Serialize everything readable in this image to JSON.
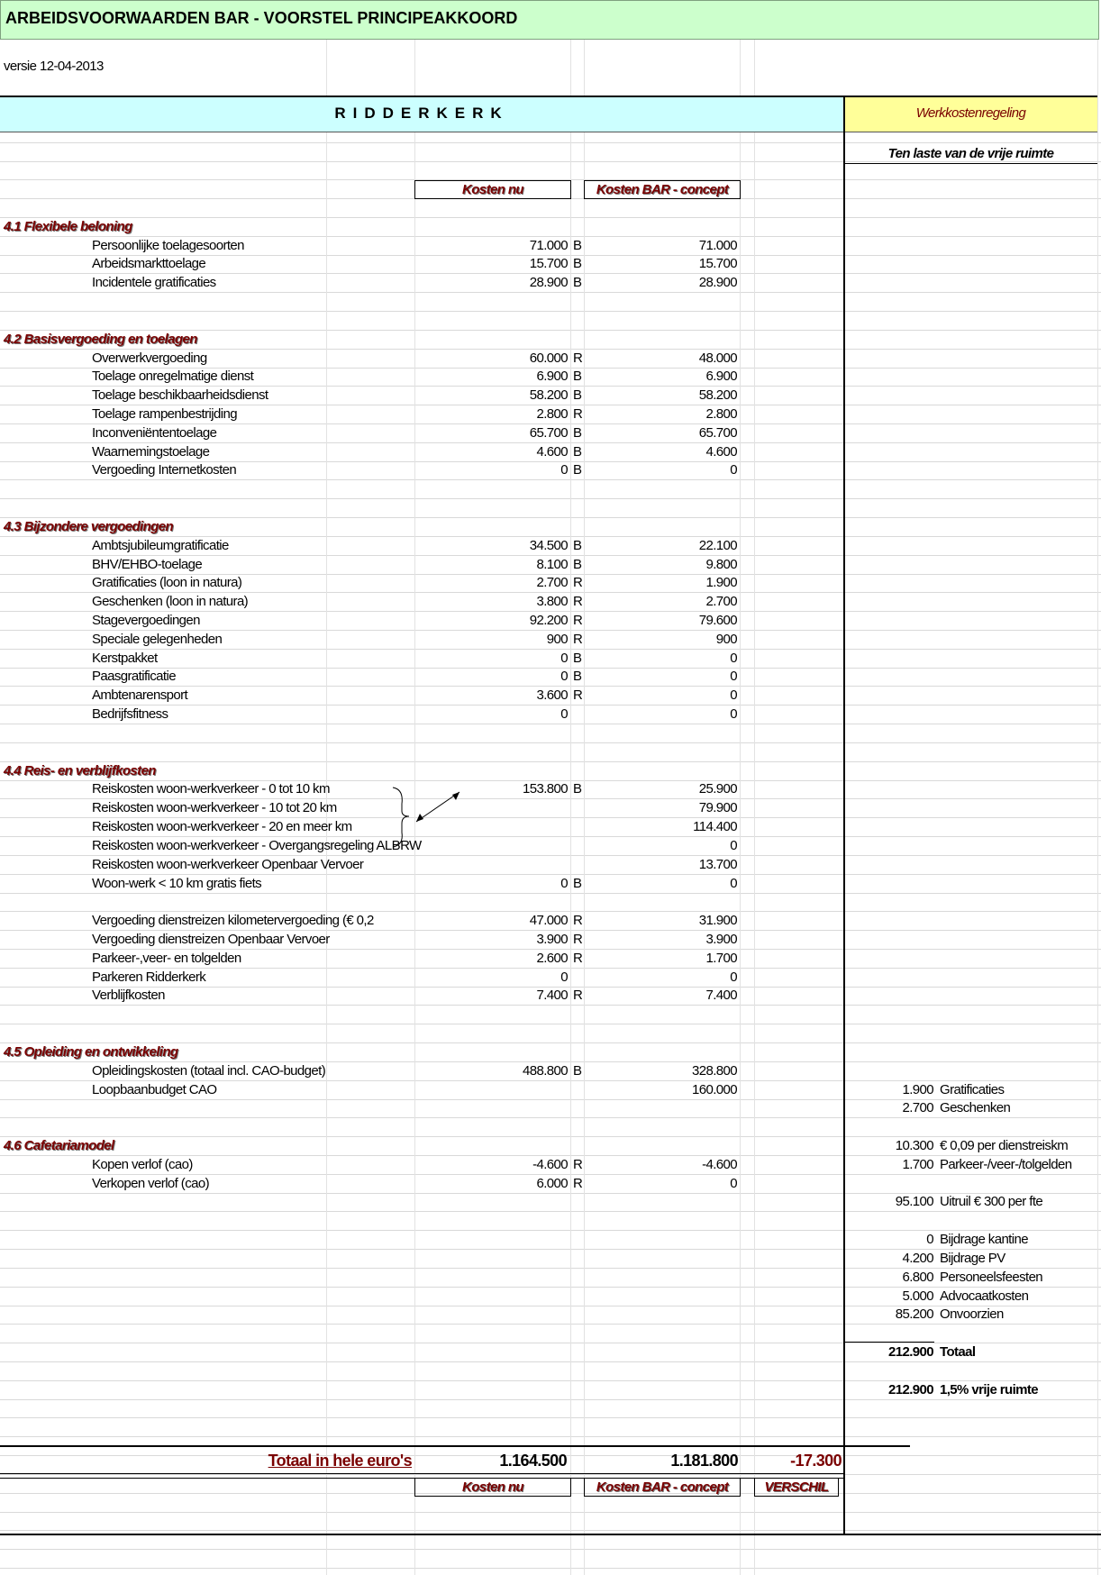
{
  "header": {
    "title": "ARBEIDSVOORWAARDEN BAR  -  VOORSTEL PRINCIPEAKKOORD",
    "version": "versie 12-04-2013"
  },
  "sheet_title": "RIDDERKERK",
  "columns": {
    "now": "Kosten nu",
    "concept": "Kosten BAR - concept",
    "diff": "VERSCHIL"
  },
  "sections": [
    {
      "title": "4.1 Flexibele beloning",
      "groups": [
        [
          {
            "label": "Persoonlijke toelagesoorten",
            "now": "71.000",
            "code": "B",
            "concept": "71.000"
          },
          {
            "label": "Arbeidsmarkttoelage",
            "now": "15.700",
            "code": "B",
            "concept": "15.700"
          },
          {
            "label": "Incidentele gratificaties",
            "now": "28.900",
            "code": "B",
            "concept": "28.900"
          }
        ]
      ]
    },
    {
      "title": "4.2 Basisvergoeding en toelagen",
      "groups": [
        [
          {
            "label": "Overwerkvergoeding",
            "now": "60.000",
            "code": "R",
            "concept": "48.000"
          },
          {
            "label": "Toelage onregelmatige dienst",
            "now": "6.900",
            "code": "B",
            "concept": "6.900"
          },
          {
            "label": "Toelage beschikbaarheidsdienst",
            "now": "58.200",
            "code": "B",
            "concept": "58.200"
          },
          {
            "label": "Toelage rampenbestrijding",
            "now": "2.800",
            "code": "R",
            "concept": "2.800"
          },
          {
            "label": "Inconveniëntentoelage",
            "now": "65.700",
            "code": "B",
            "concept": "65.700"
          },
          {
            "label": "Waarnemingstoelage",
            "now": "4.600",
            "code": "B",
            "concept": "4.600"
          },
          {
            "label": "Vergoeding Internetkosten",
            "now": "0",
            "code": "B",
            "concept": "0"
          }
        ]
      ]
    },
    {
      "title": "4.3 Bijzondere vergoedingen",
      "groups": [
        [
          {
            "label": "Ambtsjubileumgratificatie",
            "now": "34.500",
            "code": "B",
            "concept": "22.100"
          },
          {
            "label": "BHV/EHBO-toelage",
            "now": "8.100",
            "code": "B",
            "concept": "9.800"
          },
          {
            "label": "Gratificaties (loon in natura)",
            "now": "2.700",
            "code": "R",
            "concept": "1.900"
          },
          {
            "label": "Geschenken (loon in natura)",
            "now": "3.800",
            "code": "R",
            "concept": "2.700"
          },
          {
            "label": "Stagevergoedingen",
            "now": "92.200",
            "code": "R",
            "concept": "79.600"
          },
          {
            "label": "Speciale gelegenheden",
            "now": "900",
            "code": "R",
            "concept": "900"
          },
          {
            "label": "Kerstpakket",
            "now": "0",
            "code": "B",
            "concept": "0"
          },
          {
            "label": "Paasgratificatie",
            "now": "0",
            "code": "B",
            "concept": "0"
          },
          {
            "label": "Ambtenarensport",
            "now": "3.600",
            "code": "R",
            "concept": "0"
          },
          {
            "label": "Bedrijfsfitness",
            "now": "0",
            "concept": "0"
          }
        ]
      ]
    },
    {
      "title": "4.4 Reis- en verblijfkosten",
      "groups": [
        [
          {
            "label": "Reiskosten woon-werkverkeer - 0 tot 10 km",
            "now": "153.800",
            "code": "B",
            "concept": "25.900"
          },
          {
            "label": "Reiskosten woon-werkverkeer - 10 tot 20 km",
            "concept": "79.900"
          },
          {
            "label": "Reiskosten woon-werkverkeer - 20 en meer km",
            "concept": "114.400"
          },
          {
            "label": "Reiskosten woon-werkverkeer - Overgangsregeling ALBRW",
            "concept": "0"
          },
          {
            "label": "Reiskosten woon-werkverkeer Openbaar Vervoer",
            "concept": "13.700"
          },
          {
            "label": "Woon-werk < 10 km gratis fiets",
            "now": "0",
            "code": "B",
            "concept": "0"
          }
        ],
        [
          {
            "label": "Vergoeding dienstreizen kilometervergoeding (€ 0,2",
            "now": "47.000",
            "code": "R",
            "concept": "31.900"
          },
          {
            "label": "Vergoeding dienstreizen Openbaar Vervoer",
            "now": "3.900",
            "code": "R",
            "concept": "3.900"
          },
          {
            "label": "Parkeer-,veer- en tolgelden",
            "now": "2.600",
            "code": "R",
            "concept": "1.700"
          },
          {
            "label": "Parkeren Ridderkerk",
            "now": "0",
            "concept": "0"
          },
          {
            "label": "Verblijfkosten",
            "now": "7.400",
            "code": "R",
            "concept": "7.400"
          }
        ]
      ]
    },
    {
      "title": "4.5 Opleiding en ontwikkeling",
      "groups": [
        [
          {
            "label": "Opleidingskosten (totaal incl. CAO-budget)",
            "now": "488.800",
            "code": "B",
            "concept": "328.800"
          },
          {
            "label": "Loopbaanbudget CAO",
            "concept": "160.000"
          }
        ]
      ]
    },
    {
      "title": "4.6 Cafetariamodel",
      "groups": [
        [
          {
            "label": "Kopen verlof (cao)",
            "now": "-4.600",
            "code": "R",
            "concept": "-4.600"
          },
          {
            "label": "Verkopen verlof (cao)",
            "now": "6.000",
            "code": "R",
            "concept": "0"
          }
        ]
      ]
    }
  ],
  "side": {
    "title": "Werkkostenregeling",
    "subtitle": "Ten laste van de vrije ruimte",
    "groups": [
      [
        {
          "value": "1.900",
          "label": "Gratificaties"
        },
        {
          "value": "2.700",
          "label": "Geschenken"
        }
      ],
      [
        {
          "value": "10.300",
          "label": "€ 0,09 per dienstreiskm"
        },
        {
          "value": "1.700",
          "label": "Parkeer-/veer-/tolgelden"
        }
      ],
      [
        {
          "value": "95.100",
          "label": "Uitruil € 300 per fte"
        }
      ],
      [
        {
          "value": "0",
          "label": "Bijdrage kantine"
        },
        {
          "value": "4.200",
          "label": "Bijdrage PV"
        },
        {
          "value": "6.800",
          "label": "Personeelsfeesten"
        },
        {
          "value": "5.000",
          "label": "Advocaatkosten"
        },
        {
          "value": "85.200",
          "label": "Onvoorzien"
        }
      ],
      [
        {
          "value": "212.900",
          "label": "Totaal",
          "emphasis": true
        }
      ],
      [
        {
          "value": "212.900",
          "label": "1,5% vrije ruimte",
          "emphasis": true
        }
      ]
    ]
  },
  "totals": {
    "label": "Totaal in hele euro's",
    "now": "1.164.500",
    "concept": "1.181.800",
    "diff": "-17.300"
  }
}
